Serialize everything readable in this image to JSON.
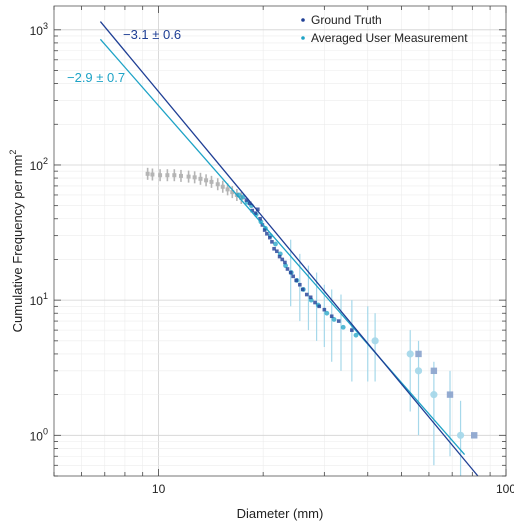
{
  "chart_data": {
    "type": "scatter",
    "xscale": "log",
    "yscale": "log",
    "xlim": [
      5,
      100
    ],
    "ylim": [
      0.5,
      1500
    ],
    "xlabel": "Diameter (mm)",
    "ylabel_main": "Cumulative Frequency per mm",
    "ylabel_sup": "2",
    "grid": true,
    "legend_position": "top-right",
    "x_ticks": [
      {
        "value": 10,
        "label": "10"
      },
      {
        "value": 100,
        "label": "100"
      }
    ],
    "y_ticks": [
      {
        "value": 1,
        "base": "10",
        "exp": "0"
      },
      {
        "value": 10,
        "base": "10",
        "exp": "1"
      },
      {
        "value": 100,
        "base": "10",
        "exp": "2"
      },
      {
        "value": 1000,
        "base": "10",
        "exp": "3"
      }
    ],
    "colors": {
      "ground_truth": "#1f3f95",
      "user": "#1ea3c6",
      "excluded": "#b5b5b5",
      "user_light": "#a6d8ea",
      "ground_light": "#8ea6cf"
    },
    "series": [
      {
        "name": "Ground Truth",
        "color": "#1f3f95",
        "fit_label": "−3.1 ± 0.6",
        "fit_line": {
          "x": [
            6.8,
            83
          ],
          "y": [
            1150,
            0.5
          ]
        },
        "points": [
          [
            17.9,
            55
          ],
          [
            18.3,
            52
          ],
          [
            18.6,
            46
          ],
          [
            19.0,
            44
          ],
          [
            19.3,
            47
          ],
          [
            19.6,
            40
          ],
          [
            19.9,
            36
          ],
          [
            20.2,
            33
          ],
          [
            20.5,
            31
          ],
          [
            20.9,
            29
          ],
          [
            21.2,
            27
          ],
          [
            21.5,
            24
          ],
          [
            21.9,
            23
          ],
          [
            22.3,
            21
          ],
          [
            22.7,
            20
          ],
          [
            23.1,
            19
          ],
          [
            23.5,
            17
          ],
          [
            24.0,
            16
          ],
          [
            24.4,
            15
          ],
          [
            24.9,
            14
          ],
          [
            25.5,
            13
          ],
          [
            26.0,
            12
          ],
          [
            26.7,
            11
          ],
          [
            27.4,
            10.5
          ],
          [
            28.2,
            9.6
          ],
          [
            29.0,
            9.0
          ],
          [
            30.0,
            8.5
          ],
          [
            31.5,
            7.6
          ],
          [
            33.0,
            7.0
          ],
          [
            36.0,
            6.0
          ],
          [
            56.0,
            4.0
          ],
          [
            62.0,
            3.0
          ],
          [
            69.0,
            2.0
          ],
          [
            81.0,
            1.0
          ]
        ]
      },
      {
        "name": "Averaged User Measurement",
        "color": "#1ea3c6",
        "fit_label": "−2.9 ± 0.7",
        "fit_line": {
          "x": [
            6.8,
            76
          ],
          "y": [
            850,
            0.72
          ]
        },
        "points": [
          [
            17.0,
            60
          ],
          [
            17.5,
            58
          ],
          [
            18.0,
            53
          ],
          [
            18.5,
            50
          ],
          [
            19.1,
            43
          ],
          [
            19.7,
            38
          ],
          [
            20.3,
            34
          ],
          [
            21.0,
            30
          ],
          [
            21.7,
            26
          ],
          [
            22.4,
            22
          ],
          [
            23.2,
            18
          ],
          [
            24.1,
            16
          ],
          [
            25.0,
            14
          ],
          [
            26.1,
            12
          ],
          [
            27.5,
            10
          ],
          [
            28.8,
            9.2
          ],
          [
            30.5,
            8.0
          ],
          [
            32.0,
            7.2
          ],
          [
            34.0,
            6.3
          ],
          [
            37.0,
            5.5
          ],
          [
            42.0,
            5.0
          ],
          [
            53.0,
            4.0
          ],
          [
            56.0,
            3.0
          ],
          [
            62.0,
            2.0
          ],
          [
            74.0,
            1.0
          ]
        ],
        "error_bars": [
          {
            "x": 24.0,
            "lo": 9,
            "hi": 28
          },
          {
            "x": 25.5,
            "lo": 7,
            "hi": 22
          },
          {
            "x": 27.0,
            "lo": 6,
            "hi": 18
          },
          {
            "x": 28.5,
            "lo": 5,
            "hi": 16
          },
          {
            "x": 30.0,
            "lo": 4.5,
            "hi": 13
          },
          {
            "x": 31.5,
            "lo": 3.5,
            "hi": 12
          },
          {
            "x": 33.5,
            "lo": 3,
            "hi": 11
          },
          {
            "x": 36.0,
            "lo": 2.5,
            "hi": 10
          },
          {
            "x": 40.0,
            "lo": 2.5,
            "hi": 9
          },
          {
            "x": 42.0,
            "lo": 2.5,
            "hi": 8
          },
          {
            "x": 53.0,
            "lo": 1.5,
            "hi": 6
          },
          {
            "x": 56.0,
            "lo": 1,
            "hi": 5
          },
          {
            "x": 62.0,
            "lo": 0.6,
            "hi": 3.5
          },
          {
            "x": 69.0,
            "lo": 0.7,
            "hi": 3
          },
          {
            "x": 74.0,
            "lo": 0.5,
            "hi": 1.8
          }
        ]
      },
      {
        "name": "",
        "color": "#b5b5b5",
        "points": [
          [
            9.3,
            86
          ],
          [
            9.6,
            85
          ],
          [
            10.1,
            84
          ],
          [
            10.6,
            84
          ],
          [
            11.1,
            84
          ],
          [
            11.6,
            83
          ],
          [
            12.2,
            82
          ],
          [
            12.7,
            81
          ],
          [
            13.2,
            79
          ],
          [
            13.7,
            77
          ],
          [
            14.2,
            75
          ],
          [
            14.8,
            72
          ],
          [
            15.3,
            69
          ],
          [
            15.8,
            66
          ],
          [
            16.3,
            63
          ],
          [
            16.8,
            60
          ],
          [
            17.3,
            57
          ]
        ]
      }
    ]
  }
}
